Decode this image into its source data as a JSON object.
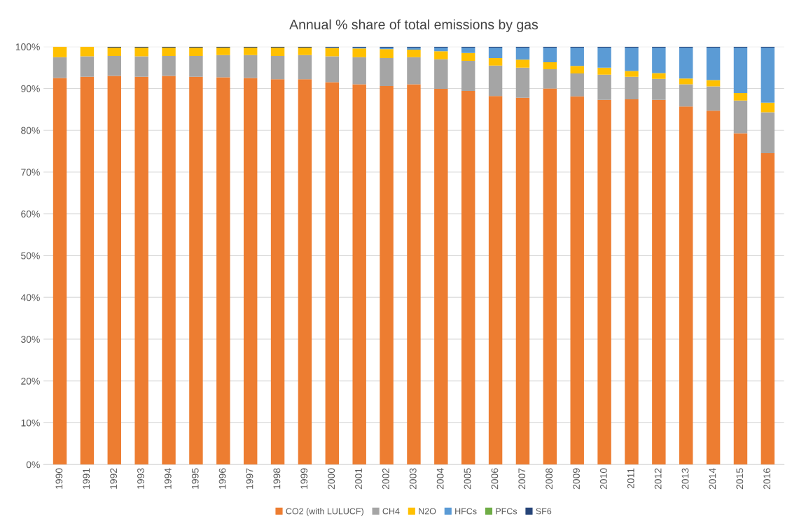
{
  "chart_data": {
    "type": "bar",
    "title": "Annual % share of total emissions by gas",
    "stacked": true,
    "categories": [
      "1990",
      "1991",
      "1992",
      "1993",
      "1994",
      "1995",
      "1996",
      "1997",
      "1998",
      "1999",
      "2000",
      "2001",
      "2002",
      "2003",
      "2004",
      "2005",
      "2006",
      "2007",
      "2008",
      "2009",
      "2010",
      "2011",
      "2012",
      "2013",
      "2014",
      "2015",
      "2016"
    ],
    "series": [
      {
        "name": "CO2 (with LULUCF)",
        "color": "#ed7d31",
        "values": [
          92.5,
          92.8,
          93.0,
          92.8,
          93.0,
          92.8,
          92.7,
          92.5,
          92.2,
          92.2,
          91.5,
          91.0,
          90.6,
          91.0,
          89.9,
          89.4,
          88.2,
          87.8,
          90.0,
          88.1,
          87.3,
          87.4,
          87.3,
          85.7,
          84.7,
          79.3,
          74.5
        ]
      },
      {
        "name": "CH4",
        "color": "#a5a5a5",
        "values": [
          5.0,
          4.9,
          4.8,
          4.9,
          4.8,
          5.0,
          5.3,
          5.5,
          5.6,
          5.8,
          6.2,
          6.5,
          6.7,
          6.5,
          7.1,
          7.2,
          7.3,
          7.2,
          4.6,
          5.5,
          6.0,
          5.4,
          5.0,
          5.3,
          5.8,
          7.8,
          9.8
        ]
      },
      {
        "name": "N2O",
        "color": "#ffc000",
        "values": [
          2.5,
          2.3,
          2.0,
          2.1,
          2.0,
          2.0,
          1.8,
          1.8,
          2.0,
          1.8,
          2.0,
          2.1,
          2.1,
          1.8,
          1.9,
          1.9,
          1.8,
          1.9,
          1.7,
          1.8,
          1.7,
          1.4,
          1.4,
          1.4,
          1.5,
          1.8,
          2.3
        ]
      },
      {
        "name": "HFCs",
        "color": "#5b9bd5",
        "values": [
          null,
          null,
          null,
          null,
          null,
          null,
          null,
          null,
          null,
          null,
          0.1,
          0.2,
          0.4,
          0.5,
          0.9,
          1.3,
          2.5,
          2.9,
          3.5,
          4.4,
          4.8,
          5.6,
          6.1,
          7.4,
          7.8,
          10.9,
          13.2
        ]
      },
      {
        "name": "PFCs",
        "color": "#70ad47",
        "values": [
          null,
          null,
          null,
          null,
          null,
          null,
          null,
          null,
          null,
          null,
          null,
          null,
          null,
          null,
          null,
          null,
          null,
          null,
          null,
          null,
          null,
          null,
          null,
          null,
          null,
          null,
          null
        ]
      },
      {
        "name": "SF6",
        "color": "#264478",
        "values": [
          null,
          null,
          0.2,
          0.2,
          0.2,
          0.2,
          0.2,
          0.2,
          0.2,
          0.2,
          0.2,
          0.2,
          0.2,
          0.2,
          0.2,
          0.2,
          0.2,
          0.2,
          0.2,
          0.2,
          0.2,
          0.2,
          0.2,
          0.2,
          0.2,
          0.2,
          0.2
        ]
      }
    ],
    "ylim": [
      0,
      100
    ],
    "yticks": [
      {
        "value": 0,
        "label": "0%"
      },
      {
        "value": 10,
        "label": "10%"
      },
      {
        "value": 20,
        "label": "20%"
      },
      {
        "value": 30,
        "label": "30%"
      },
      {
        "value": 40,
        "label": "40%"
      },
      {
        "value": 50,
        "label": "50%"
      },
      {
        "value": 60,
        "label": "60%"
      },
      {
        "value": 70,
        "label": "70%"
      },
      {
        "value": 80,
        "label": "80%"
      },
      {
        "value": 90,
        "label": "90%"
      },
      {
        "value": 100,
        "label": "100%"
      }
    ],
    "grid": "y",
    "legend": "bottom"
  }
}
